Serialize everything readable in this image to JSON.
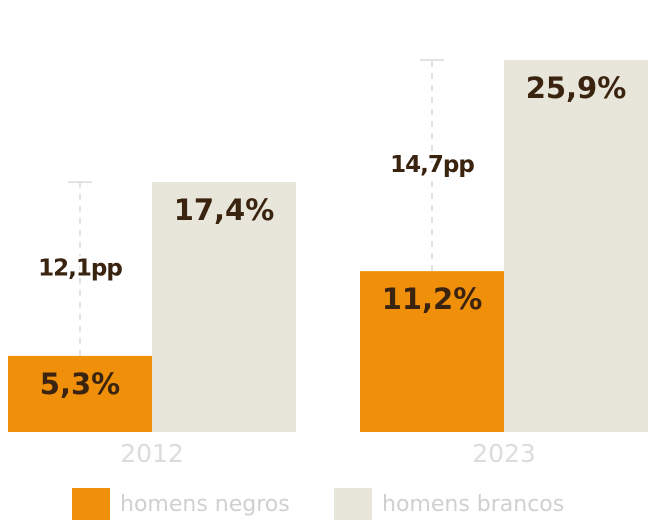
{
  "chart_data": {
    "type": "bar",
    "categories": [
      "2012",
      "2023"
    ],
    "series": [
      {
        "name": "homens negros",
        "color": "#f0900a",
        "values": [
          5.3,
          11.2
        ],
        "value_labels": [
          "5,3%",
          "11,2%"
        ]
      },
      {
        "name": "homens brancos",
        "color": "#e8e5da",
        "values": [
          17.4,
          25.9
        ],
        "value_labels": [
          "17,4%",
          "25,9%"
        ]
      }
    ],
    "gap_labels": [
      "12,1pp",
      "14,7pp"
    ]
  }
}
